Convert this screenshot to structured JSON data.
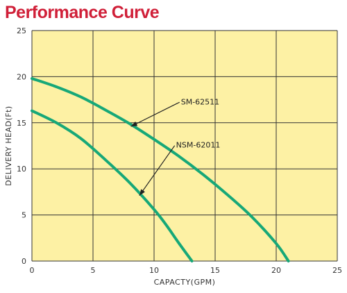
{
  "colors": {
    "title": "#d01f38",
    "plot_background": "#fdf1a4",
    "grid": "#333333",
    "curve": "#17a878",
    "text": "#333333"
  },
  "chart_data": {
    "type": "line",
    "title": "Performance Curve",
    "xlabel": "CAPACTY(GPM)",
    "ylabel": "DELIVERY HEAD(Ft)",
    "xlim": [
      0,
      25
    ],
    "ylim": [
      0,
      25
    ],
    "xticks": [
      "0",
      "5",
      "10",
      "15",
      "20",
      "25"
    ],
    "yticks": [
      "0",
      "5",
      "10",
      "15",
      "20",
      "25"
    ],
    "grid": true,
    "series": [
      {
        "name": "SM-62511",
        "x": [
          0,
          2,
          4,
          6,
          8,
          10,
          12,
          14,
          16,
          18,
          20,
          21
        ],
        "y": [
          19.8,
          18.9,
          17.8,
          16.4,
          14.9,
          13.2,
          11.4,
          9.4,
          7.2,
          4.8,
          1.9,
          0
        ]
      },
      {
        "name": "NSM-62011",
        "x": [
          0,
          2,
          4,
          6,
          8,
          10,
          11,
          12,
          13.1
        ],
        "y": [
          16.3,
          15.0,
          13.3,
          11.0,
          8.5,
          5.6,
          3.9,
          2.0,
          0
        ]
      }
    ],
    "annotations": [
      {
        "label": "SM-62511",
        "series": 0,
        "text_x": 12.2,
        "text_y": 17.3,
        "arrow_to_x": 8.1,
        "arrow_to_y": 14.6
      },
      {
        "label": "NSM-62011",
        "series": 1,
        "text_x": 11.8,
        "text_y": 12.6,
        "arrow_to_x": 8.8,
        "arrow_to_y": 7.1
      }
    ]
  }
}
